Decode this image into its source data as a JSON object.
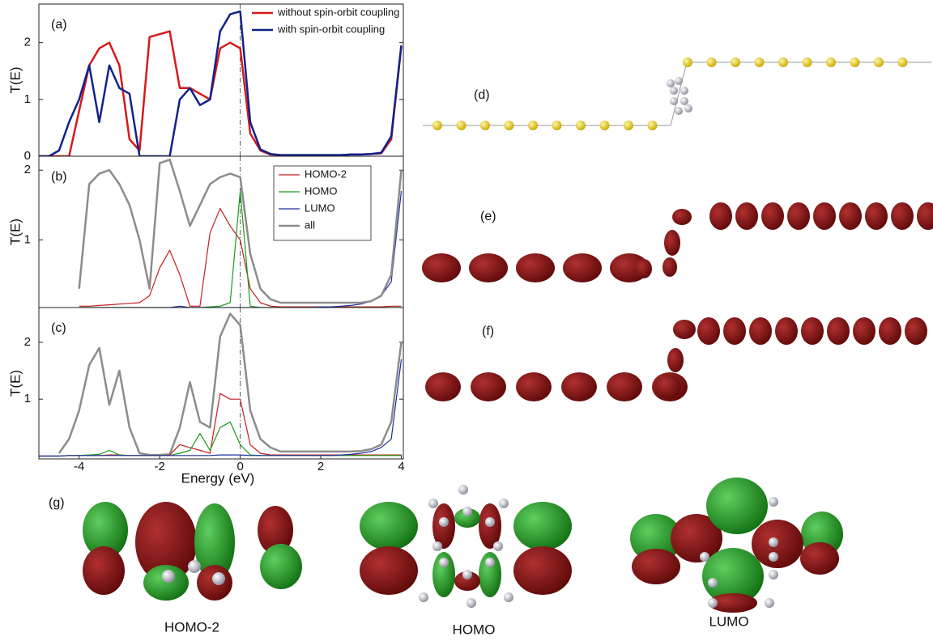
{
  "chart_data": [
    {
      "type": "line",
      "annotation": "(a)",
      "ylabel": "T(E)",
      "x": [
        -5,
        -4.75,
        -4.5,
        -4.25,
        -4,
        -3.75,
        -3.5,
        -3.25,
        -3,
        -2.75,
        -2.5,
        -2.25,
        -2,
        -1.75,
        -1.5,
        -1.25,
        -1,
        -0.75,
        -0.5,
        -0.25,
        0,
        0.25,
        0.5,
        0.75,
        1,
        1.25,
        1.5,
        1.75,
        2,
        2.25,
        2.5,
        2.75,
        3,
        3.25,
        3.5,
        3.75,
        4
      ],
      "xlim": [
        -5,
        4.05
      ],
      "ylim": [
        0,
        2.68
      ],
      "yticks": [
        0,
        1,
        2
      ],
      "vline": 0,
      "legend": "upper right",
      "series": [
        {
          "name": "without spin-orbit coupling",
          "color": "#d7191c",
          "width": 2.5,
          "values": [
            0,
            0,
            0,
            0,
            0.8,
            1.6,
            1.9,
            2.0,
            1.6,
            0.3,
            0.1,
            2.1,
            2.15,
            2.2,
            1.2,
            1.2,
            1.1,
            1.0,
            1.9,
            2.0,
            1.9,
            0.4,
            0.1,
            0.03,
            0.02,
            0.02,
            0.02,
            0.02,
            0.02,
            0.02,
            0.02,
            0.03,
            0.03,
            0.04,
            0.05,
            0.3,
            1.95
          ]
        },
        {
          "name": "with spin-orbit coupling",
          "color": "#10228a",
          "width": 2.5,
          "values": [
            0,
            0,
            0.1,
            0.6,
            1.0,
            1.6,
            0.6,
            1.6,
            1.2,
            1.1,
            0,
            0,
            0,
            0,
            1.0,
            1.2,
            0.9,
            1.0,
            2.2,
            2.5,
            2.55,
            0.6,
            0.12,
            0.04,
            0.02,
            0.02,
            0.02,
            0.02,
            0.02,
            0.02,
            0.02,
            0.03,
            0.03,
            0.04,
            0.06,
            0.35,
            1.95
          ]
        }
      ]
    },
    {
      "type": "line",
      "annotation": "(b)",
      "ylabel": "T(E)",
      "x": [
        -5,
        -4.75,
        -4.5,
        -4.25,
        -4,
        -3.75,
        -3.5,
        -3.25,
        -3,
        -2.75,
        -2.5,
        -2.25,
        -2,
        -1.75,
        -1.5,
        -1.25,
        -1,
        -0.75,
        -0.5,
        -0.25,
        0,
        0.25,
        0.5,
        0.75,
        1,
        1.25,
        1.5,
        1.75,
        2,
        2.25,
        2.5,
        2.75,
        3,
        3.25,
        3.5,
        3.75,
        4
      ],
      "xlim": [
        -5,
        4.05
      ],
      "ylim": [
        0.03,
        2.2
      ],
      "yticks": [
        1,
        2
      ],
      "vline": 0,
      "legend": "upper right",
      "legend_frame": true,
      "series": [
        {
          "name": "HOMO-2",
          "color": "#c41e1e",
          "width": 1.2,
          "values": [
            null,
            null,
            null,
            null,
            0.05,
            0.05,
            0.06,
            0.07,
            0.08,
            0.09,
            0.1,
            0.2,
            0.6,
            0.85,
            0.5,
            0.05,
            0.05,
            1.1,
            1.45,
            1.2,
            1.0,
            0.3,
            0.1,
            0.05,
            0.04,
            0.04,
            0.04,
            0.04,
            0.04,
            0.04,
            0.04,
            0.04,
            0.04,
            0.04,
            0.04,
            0.05,
            0.05
          ]
        },
        {
          "name": "HOMO",
          "color": "#1a9a1a",
          "width": 1.2,
          "values": [
            null,
            null,
            null,
            null,
            0.03,
            0.03,
            0.03,
            0.03,
            0.03,
            0.03,
            0.03,
            0.03,
            0.03,
            0.03,
            0.03,
            0.03,
            0.03,
            0.04,
            0.05,
            0.1,
            1.7,
            0.05,
            0.03,
            0.03,
            0.03,
            0.03,
            0.03,
            0.03,
            0.03,
            0.03,
            0.03,
            0.03,
            0.03,
            0.03,
            0.03,
            0.03,
            0.03
          ]
        },
        {
          "name": "LUMO",
          "color": "#1f2fa0",
          "width": 1.2,
          "values": [
            null,
            null,
            null,
            null,
            0.03,
            0.03,
            0.03,
            0.03,
            0.03,
            0.03,
            0.03,
            0.03,
            0.03,
            0.03,
            0.05,
            0.03,
            0.03,
            0.03,
            0.03,
            0.03,
            0.03,
            0.03,
            0.03,
            0.03,
            0.03,
            0.03,
            0.03,
            0.03,
            0.04,
            0.04,
            0.05,
            0.06,
            0.08,
            0.12,
            0.2,
            0.4,
            1.7
          ]
        },
        {
          "name": "all",
          "color": "#8c8c8c",
          "width": 2.5,
          "values": [
            null,
            null,
            null,
            null,
            0.3,
            1.8,
            1.95,
            2.0,
            1.8,
            1.5,
            1.0,
            0.3,
            2.1,
            2.15,
            1.7,
            1.2,
            1.5,
            1.8,
            1.9,
            1.95,
            1.9,
            0.8,
            0.3,
            0.15,
            0.1,
            0.1,
            0.1,
            0.1,
            0.1,
            0.1,
            0.1,
            0.1,
            0.1,
            0.12,
            0.2,
            0.5,
            2.0
          ]
        }
      ]
    },
    {
      "type": "line",
      "annotation": "(c)",
      "ylabel": "T(E)",
      "xlabel": "Energy (eV)",
      "x": [
        -5,
        -4.75,
        -4.5,
        -4.25,
        -4,
        -3.75,
        -3.5,
        -3.25,
        -3,
        -2.75,
        -2.5,
        -2.25,
        -2,
        -1.75,
        -1.5,
        -1.25,
        -1,
        -0.75,
        -0.5,
        -0.25,
        0,
        0.25,
        0.5,
        0.75,
        1,
        1.25,
        1.5,
        1.75,
        2,
        2.25,
        2.5,
        2.75,
        3,
        3.25,
        3.5,
        3.75,
        4
      ],
      "xlim": [
        -5,
        4.05
      ],
      "ylim": [
        -0.05,
        2.61
      ],
      "yticks": [
        1,
        2
      ],
      "xticks": [
        -4,
        -2,
        0,
        2,
        4
      ],
      "vline": 0,
      "series": [
        {
          "color": "#8c8c8c",
          "width": 2.5,
          "values": [
            null,
            null,
            0.05,
            0.3,
            0.8,
            1.6,
            1.9,
            0.9,
            1.5,
            0.5,
            0.05,
            0.02,
            0.02,
            0.03,
            0.5,
            1.3,
            0.6,
            0.5,
            2.1,
            2.5,
            2.3,
            0.8,
            0.3,
            0.15,
            0.08,
            0.08,
            0.08,
            0.08,
            0.08,
            0.08,
            0.08,
            0.08,
            0.09,
            0.12,
            0.2,
            0.6,
            2.0
          ]
        },
        {
          "color": "#c41e1e",
          "width": 1.2,
          "values": [
            0,
            0,
            0,
            0.01,
            0.01,
            0.01,
            0.01,
            0.02,
            0.02,
            0.01,
            0.01,
            0.01,
            0.01,
            0.02,
            0.2,
            0.15,
            0.1,
            0.05,
            1.1,
            1.0,
            1.0,
            0.2,
            0.05,
            0.02,
            0.02,
            0.02,
            0.02,
            0.02,
            0.02,
            0.02,
            0.02,
            0.02,
            0.02,
            0.02,
            0.02,
            0.02,
            0.02
          ]
        },
        {
          "color": "#1a9a1a",
          "width": 1.2,
          "values": [
            0,
            0,
            0,
            0.01,
            0.01,
            0.02,
            0.03,
            0.1,
            0.02,
            0.01,
            0.01,
            0.01,
            0.01,
            0.01,
            0.05,
            0.1,
            0.4,
            0.1,
            0.5,
            0.6,
            0.2,
            0.02,
            0.01,
            0.01,
            0.01,
            0.01,
            0.01,
            0.01,
            0.01,
            0.01,
            0.01,
            0.01,
            0.01,
            0.01,
            0.01,
            0.01,
            0.01
          ]
        },
        {
          "color": "#1f2fa0",
          "width": 1.2,
          "values": [
            0,
            0,
            0,
            0.01,
            0.01,
            0.01,
            0.01,
            0.01,
            0.01,
            0.01,
            0.01,
            0.01,
            0.01,
            0.01,
            0.01,
            0.01,
            0.01,
            0.01,
            0.02,
            0.02,
            0.02,
            0.01,
            0.01,
            0.01,
            0.01,
            0.01,
            0.01,
            0.01,
            0.01,
            0.01,
            0.02,
            0.03,
            0.05,
            0.08,
            0.15,
            0.3,
            1.7
          ]
        }
      ]
    }
  ],
  "illustrations": {
    "labels": [
      "(d)",
      "(e)",
      "(f)",
      "(g)"
    ],
    "orbitals": [
      "HOMO-2",
      "HOMO",
      "LUMO"
    ]
  }
}
